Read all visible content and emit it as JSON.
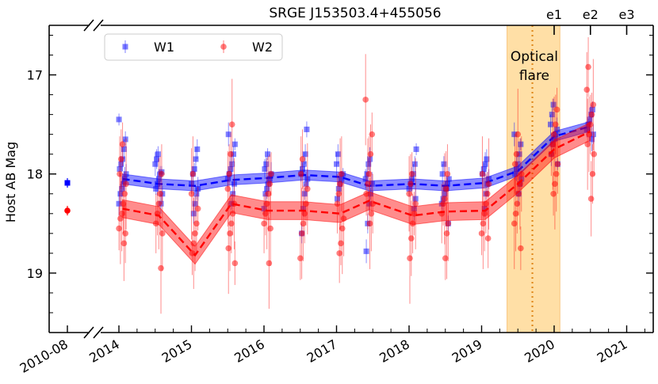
{
  "chart_data": {
    "type": "scatter",
    "title": "SRGE J153503.4+455056",
    "ylabel": "Host AB Mag",
    "ylim": [
      19.6,
      16.5
    ],
    "y_inverted": true,
    "xlim": [
      2009.35,
      2021.35
    ],
    "axis_break": "between 2010-08 and 2014",
    "x_ticks": [
      {
        "label": "2010-08",
        "value": 2010.2
      },
      {
        "label": "2014",
        "value": 2014.0
      },
      {
        "label": "2015",
        "value": 2015.0
      },
      {
        "label": "2016",
        "value": 2016.0
      },
      {
        "label": "2017",
        "value": 2017.0
      },
      {
        "label": "2018",
        "value": 2018.0
      },
      {
        "label": "2019",
        "value": 2019.0
      },
      {
        "label": "2020",
        "value": 2020.0
      },
      {
        "label": "2021",
        "value": 2021.0
      }
    ],
    "y_ticks": [
      17,
      18,
      19
    ],
    "top_ticks": [
      {
        "label": "e1",
        "value": 2020.0
      },
      {
        "label": "e2",
        "value": 2020.5
      },
      {
        "label": "e3",
        "value": 2021.0
      }
    ],
    "flare": {
      "label_line1": "Optical",
      "label_line2": "flare",
      "start": 2019.35,
      "end": 2020.08,
      "peak": 2019.7
    },
    "legend": {
      "position": "top-left",
      "entries": [
        "W1",
        "W2"
      ]
    },
    "colors": {
      "W1": "#0000ff",
      "W2": "#ff0000",
      "band": "#ffc04d",
      "band_edge": "#f2a33a",
      "peak_line": "#e08a1e"
    },
    "series": [
      {
        "name": "W1",
        "reference_point": {
          "x": 2010.2,
          "y": 18.09
        },
        "x": [
          2014.05,
          2014.55,
          2015.05,
          2015.55,
          2016.05,
          2016.55,
          2017.05,
          2017.45,
          2018.05,
          2018.5,
          2019.05,
          2019.5,
          2020.0,
          2020.5
        ],
        "mean": [
          18.05,
          18.1,
          18.12,
          18.06,
          18.04,
          18.01,
          18.03,
          18.12,
          18.1,
          18.12,
          18.09,
          17.97,
          17.62,
          17.52
        ],
        "band": 0.05,
        "scatter": [
          [
            17.45,
            17.65,
            17.75,
            17.85,
            17.9,
            17.95,
            18.0,
            18.05,
            18.1,
            18.15,
            18.2,
            18.3
          ],
          [
            17.8,
            17.85,
            17.9,
            17.98,
            18.0,
            18.05,
            18.1,
            18.15,
            18.2,
            18.3
          ],
          [
            17.75,
            17.85,
            17.95,
            18.0,
            18.1,
            18.15,
            18.2,
            18.3,
            18.4
          ],
          [
            17.6,
            17.7,
            17.8,
            17.9,
            17.95,
            18.0,
            18.05,
            18.1,
            18.2,
            18.3
          ],
          [
            17.8,
            17.9,
            17.95,
            18.0,
            18.05,
            18.1,
            18.15,
            18.2,
            18.35
          ],
          [
            17.55,
            17.8,
            17.9,
            17.95,
            18.0,
            18.05,
            18.1,
            18.2,
            18.35,
            18.6
          ],
          [
            17.8,
            17.9,
            18.0,
            18.05,
            18.1,
            18.15,
            18.25
          ],
          [
            17.85,
            17.9,
            18.0,
            18.05,
            18.1,
            18.2,
            18.3,
            18.5,
            18.78
          ],
          [
            17.75,
            17.9,
            18.0,
            18.05,
            18.1,
            18.15,
            18.25,
            18.35
          ],
          [
            17.9,
            18.0,
            18.05,
            18.1,
            18.15,
            18.2,
            18.25,
            18.3,
            18.5
          ],
          [
            17.85,
            17.9,
            17.95,
            18.0,
            18.05,
            18.1,
            18.2,
            18.35
          ],
          [
            17.6,
            17.7,
            17.8,
            17.9,
            17.95,
            18.0,
            18.05,
            18.1,
            18.2
          ],
          [
            17.3,
            17.4,
            17.5,
            17.55,
            17.6,
            17.65,
            17.7,
            17.8,
            17.9
          ],
          [
            17.35,
            17.4,
            17.45,
            17.5,
            17.55,
            17.6,
            17.65
          ]
        ]
      },
      {
        "name": "W2",
        "reference_point": {
          "x": 2010.2,
          "y": 18.37
        },
        "x": [
          2014.05,
          2014.55,
          2015.05,
          2015.55,
          2016.05,
          2016.55,
          2017.05,
          2017.45,
          2018.05,
          2018.5,
          2019.05,
          2019.5,
          2020.0,
          2020.5
        ],
        "mean": [
          18.35,
          18.42,
          18.82,
          18.3,
          18.37,
          18.37,
          18.4,
          18.27,
          18.42,
          18.38,
          18.37,
          18.1,
          17.75,
          17.57
        ],
        "band": 0.09,
        "scatter": [
          [
            17.7,
            17.85,
            18.0,
            18.1,
            18.2,
            18.3,
            18.4,
            18.45,
            18.55,
            18.6,
            18.7
          ],
          [
            18.0,
            18.2,
            18.3,
            18.4,
            18.5,
            18.6,
            18.95
          ],
          [
            18.0,
            18.2,
            18.35,
            18.5,
            18.6,
            18.7,
            18.8
          ],
          [
            17.5,
            17.8,
            18.0,
            18.15,
            18.3,
            18.4,
            18.5,
            18.6,
            18.75,
            18.9
          ],
          [
            18.0,
            18.1,
            18.2,
            18.3,
            18.4,
            18.5,
            18.55,
            18.9
          ],
          [
            17.85,
            18.0,
            18.15,
            18.3,
            18.4,
            18.5,
            18.6,
            18.85
          ],
          [
            18.0,
            18.1,
            18.2,
            18.3,
            18.45,
            18.55,
            18.7,
            18.8
          ],
          [
            17.25,
            17.6,
            17.8,
            18.0,
            18.1,
            18.2,
            18.3,
            18.4,
            18.5
          ],
          [
            18.0,
            18.1,
            18.2,
            18.3,
            18.4,
            18.5,
            18.65,
            18.85
          ],
          [
            18.0,
            18.15,
            18.25,
            18.3,
            18.4,
            18.5,
            18.6,
            18.85
          ],
          [
            18.0,
            18.1,
            18.2,
            18.3,
            18.4,
            18.5,
            18.6,
            18.65
          ],
          [
            17.6,
            17.8,
            17.9,
            18.0,
            18.1,
            18.2,
            18.3,
            18.4,
            18.5,
            18.75
          ],
          [
            17.35,
            17.5,
            17.6,
            17.7,
            17.8,
            17.9,
            18.0,
            18.1,
            18.2
          ],
          [
            16.92,
            17.15,
            17.3,
            17.4,
            17.5,
            17.6,
            17.7,
            17.8,
            18.0,
            18.25
          ]
        ]
      }
    ]
  }
}
